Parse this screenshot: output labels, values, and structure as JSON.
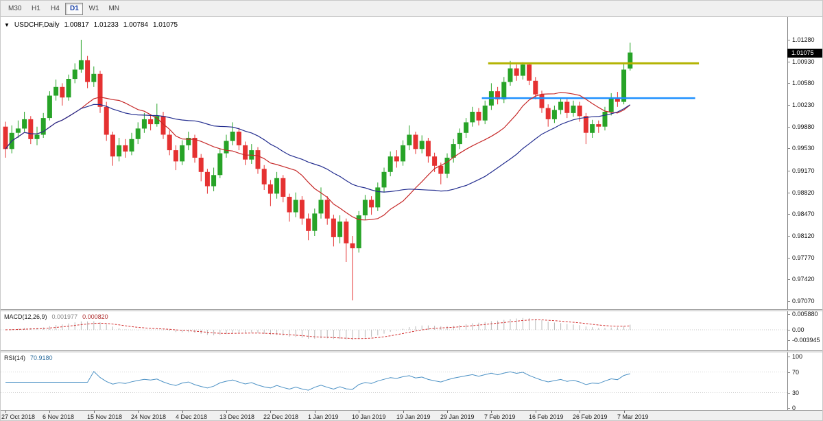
{
  "toolbar": {
    "timeframes": [
      {
        "label": "M30",
        "active": false
      },
      {
        "label": "H1",
        "active": false
      },
      {
        "label": "H4",
        "active": false
      },
      {
        "label": "D1",
        "active": true
      },
      {
        "label": "W1",
        "active": false
      },
      {
        "label": "MN",
        "active": false
      }
    ]
  },
  "chart": {
    "dropdown_icon": "▼",
    "symbol": "USDCHF,Daily",
    "ohlc": {
      "open": "1.00817",
      "high": "1.01233",
      "low": "1.00784",
      "close": "1.01075"
    },
    "price_axis": {
      "ticks": [
        "1.01280",
        "1.00930",
        "1.00580",
        "1.00230",
        "0.99880",
        "0.99530",
        "0.99170",
        "0.98820",
        "0.98470",
        "0.98120",
        "0.97770",
        "0.97420",
        "0.97070"
      ],
      "current_price": "1.01075"
    },
    "time_axis": [
      {
        "label": "27 Oct 2018",
        "index": 0
      },
      {
        "label": "6 Nov 2018",
        "index": 7
      },
      {
        "label": "15 Nov 2018",
        "index": 14
      },
      {
        "label": "24 Nov 2018",
        "index": 21
      },
      {
        "label": "4 Dec 2018",
        "index": 28
      },
      {
        "label": "13 Dec 2018",
        "index": 35
      },
      {
        "label": "22 Dec 2018",
        "index": 42
      },
      {
        "label": "1 Jan 2019",
        "index": 49
      },
      {
        "label": "10 Jan 2019",
        "index": 56
      },
      {
        "label": "19 Jan 2019",
        "index": 63
      },
      {
        "label": "29 Jan 2019",
        "index": 70
      },
      {
        "label": "7 Feb 2019",
        "index": 77
      },
      {
        "label": "16 Feb 2019",
        "index": 84
      },
      {
        "label": "26 Feb 2019",
        "index": 91
      },
      {
        "label": "7 Mar 2019",
        "index": 98
      }
    ]
  },
  "overlays": [
    {
      "name": "resistance-trendline",
      "price": 1.009,
      "start_index": 76.5,
      "end_index": 109.9,
      "color": "#b3b300",
      "width": 3
    },
    {
      "name": "support-trendline",
      "price": 1.0034,
      "start_index": 75.5,
      "end_index": 109.3,
      "color": "#1e90ff",
      "width": 2.5
    }
  ],
  "macd": {
    "name": "MACD(12,26,9)",
    "value_main": "0.001977",
    "value_signal": "0.000820",
    "fast": 12,
    "slow": 26,
    "signal": 9,
    "axis": [
      {
        "label": "0.005880",
        "value": 0.00588
      },
      {
        "label": "0.00",
        "value": 0
      },
      {
        "label": "-0.003945",
        "value": -0.003945
      }
    ]
  },
  "rsi": {
    "name": "RSI(14)",
    "value": "70.9180",
    "period": 14,
    "levels": [
      70,
      30
    ],
    "axis": [
      {
        "label": "100",
        "value": 100
      },
      {
        "label": "70",
        "value": 70
      },
      {
        "label": "30",
        "value": 30
      },
      {
        "label": "0",
        "value": 0
      }
    ]
  },
  "colors": {
    "candle_up": "#27a327",
    "candle_down": "#e53131",
    "ma_fast": "#c62828",
    "ma_slow": "#232d8f",
    "macd_hist": "#b8b8b8",
    "macd_signal": "#d32f2f",
    "rsi_line": "#4a90c4",
    "price_tag_bg": "#000000",
    "price_tag_text": "#ffffff"
  },
  "chart_data": {
    "type": "candlestick",
    "symbol": "USDCHF",
    "timeframe": "Daily",
    "title": "USDCHF,Daily",
    "current_ohlc": {
      "open": 1.00817,
      "high": 1.01233,
      "low": 1.00784,
      "close": 1.01075
    },
    "price_range": [
      0.9707,
      1.0128
    ],
    "x_axis_dates": [
      "27 Oct 2018",
      "6 Nov 2018",
      "15 Nov 2018",
      "24 Nov 2018",
      "4 Dec 2018",
      "13 Dec 2018",
      "22 Dec 2018",
      "1 Jan 2019",
      "10 Jan 2019",
      "19 Jan 2019",
      "29 Jan 2019",
      "7 Feb 2019",
      "16 Feb 2019",
      "26 Feb 2019",
      "7 Mar 2019"
    ],
    "moving_averages": [
      {
        "name": "ma-fast",
        "period": 13,
        "color": "#c62828"
      },
      {
        "name": "ma-slow",
        "period": 30,
        "color": "#232d8f"
      }
    ],
    "candles_ohlc": [
      [
        0.9988,
        0.9996,
        0.9938,
        0.9952
      ],
      [
        0.9952,
        0.999,
        0.9945,
        0.9978
      ],
      [
        0.9978,
        0.9998,
        0.997,
        0.9985
      ],
      [
        0.9985,
        1.0012,
        0.998,
        1.0
      ],
      [
        1.0,
        1.0005,
        0.996,
        0.9968
      ],
      [
        0.9968,
        0.9988,
        0.9958,
        0.9975
      ],
      [
        0.9975,
        1.001,
        0.997,
        1.0002
      ],
      [
        1.0002,
        1.0045,
        0.9998,
        1.0038
      ],
      [
        1.0038,
        1.0064,
        1.003,
        1.0052
      ],
      [
        1.0052,
        1.0058,
        1.0022,
        1.0035
      ],
      [
        1.0035,
        1.0072,
        1.003,
        1.0065
      ],
      [
        1.0065,
        1.009,
        1.0058,
        1.008
      ],
      [
        1.008,
        1.0128,
        1.0075,
        1.0095
      ],
      [
        1.0095,
        1.0102,
        1.005,
        1.006
      ],
      [
        1.006,
        1.0085,
        1.0052,
        1.0073
      ],
      [
        1.0073,
        1.0078,
        1.001,
        1.002
      ],
      [
        1.002,
        1.0028,
        0.9965,
        0.9975
      ],
      [
        0.9975,
        0.998,
        0.9925,
        0.994
      ],
      [
        0.994,
        0.997,
        0.9932,
        0.9958
      ],
      [
        0.9958,
        0.9968,
        0.9938,
        0.9948
      ],
      [
        0.9948,
        0.9978,
        0.9942,
        0.9968
      ],
      [
        0.9968,
        0.9995,
        0.996,
        0.9985
      ],
      [
        0.9985,
        1.001,
        0.9978,
        1.0
      ],
      [
        1.0,
        1.0008,
        0.9982,
        0.9992
      ],
      [
        0.9992,
        1.0025,
        0.9988,
        1.0005
      ],
      [
        1.0005,
        1.0012,
        0.9968,
        0.9975
      ],
      [
        0.9975,
        0.9982,
        0.9942,
        0.995
      ],
      [
        0.995,
        0.9958,
        0.9918,
        0.9932
      ],
      [
        0.9932,
        0.9966,
        0.9926,
        0.9958
      ],
      [
        0.9958,
        0.998,
        0.995,
        0.997
      ],
      [
        0.997,
        0.9975,
        0.993,
        0.9938
      ],
      [
        0.9938,
        0.9944,
        0.99,
        0.9915
      ],
      [
        0.9915,
        0.992,
        0.988,
        0.9892
      ],
      [
        0.9892,
        0.9922,
        0.9884,
        0.991
      ],
      [
        0.991,
        0.9952,
        0.9905,
        0.9945
      ],
      [
        0.9945,
        0.9975,
        0.9938,
        0.9965
      ],
      [
        0.9965,
        0.9995,
        0.9958,
        0.998
      ],
      [
        0.998,
        0.9986,
        0.995,
        0.9958
      ],
      [
        0.9958,
        0.9964,
        0.9926,
        0.9935
      ],
      [
        0.9935,
        0.996,
        0.9928,
        0.995
      ],
      [
        0.995,
        0.9955,
        0.9912,
        0.992
      ],
      [
        0.992,
        0.9926,
        0.9886,
        0.9895
      ],
      [
        0.9895,
        0.9902,
        0.986,
        0.988
      ],
      [
        0.988,
        0.9915,
        0.9872,
        0.9905
      ],
      [
        0.9905,
        0.991,
        0.9866,
        0.9875
      ],
      [
        0.9875,
        0.988,
        0.9835,
        0.985
      ],
      [
        0.985,
        0.9882,
        0.9842,
        0.987
      ],
      [
        0.987,
        0.9876,
        0.983,
        0.984
      ],
      [
        0.984,
        0.9848,
        0.9805,
        0.982
      ],
      [
        0.982,
        0.9856,
        0.9812,
        0.9848
      ],
      [
        0.9848,
        0.989,
        0.984,
        0.987
      ],
      [
        0.987,
        0.9876,
        0.983,
        0.984
      ],
      [
        0.984,
        0.9846,
        0.9795,
        0.981
      ],
      [
        0.981,
        0.9845,
        0.98,
        0.9835
      ],
      [
        0.9835,
        0.984,
        0.977,
        0.98
      ],
      [
        0.98,
        0.9812,
        0.9708,
        0.9792
      ],
      [
        0.9792,
        0.9852,
        0.9785,
        0.9845
      ],
      [
        0.9845,
        0.9878,
        0.9838,
        0.987
      ],
      [
        0.987,
        0.9876,
        0.9846,
        0.9858
      ],
      [
        0.9858,
        0.9898,
        0.9852,
        0.989
      ],
      [
        0.989,
        0.9922,
        0.9882,
        0.9915
      ],
      [
        0.9915,
        0.9948,
        0.9908,
        0.994
      ],
      [
        0.994,
        0.995,
        0.9922,
        0.9932
      ],
      [
        0.9932,
        0.9966,
        0.9925,
        0.9958
      ],
      [
        0.9958,
        0.999,
        0.995,
        0.9975
      ],
      [
        0.9975,
        0.998,
        0.9944,
        0.9952
      ],
      [
        0.9952,
        0.9974,
        0.9945,
        0.9965
      ],
      [
        0.9965,
        0.997,
        0.993,
        0.994
      ],
      [
        0.994,
        0.9946,
        0.9915,
        0.9925
      ],
      [
        0.9925,
        0.993,
        0.9895,
        0.9912
      ],
      [
        0.9912,
        0.9945,
        0.9905,
        0.9938
      ],
      [
        0.9938,
        0.9968,
        0.993,
        0.996
      ],
      [
        0.996,
        0.9985,
        0.9952,
        0.9978
      ],
      [
        0.9978,
        1.0002,
        0.997,
        0.9995
      ],
      [
        0.9995,
        1.002,
        0.9988,
        1.0012
      ],
      [
        1.0012,
        1.0018,
        0.999,
        0.9998
      ],
      [
        0.9998,
        1.003,
        0.9992,
        1.0022
      ],
      [
        1.0022,
        1.0058,
        1.0015,
        1.0045
      ],
      [
        1.0045,
        1.0052,
        1.0024,
        1.0032
      ],
      [
        1.0032,
        1.0068,
        1.0026,
        1.006
      ],
      [
        1.006,
        1.0094,
        1.0054,
        1.0082
      ],
      [
        1.0082,
        1.0088,
        1.0062,
        1.007
      ],
      [
        1.007,
        1.0092,
        1.0064,
        1.0088
      ],
      [
        1.0088,
        1.009,
        1.0055,
        1.0062
      ],
      [
        1.0062,
        1.0068,
        1.0032,
        1.004
      ],
      [
        1.004,
        1.0046,
        1.001,
        1.0018
      ],
      [
        1.0018,
        1.0024,
        0.9988,
        1.0
      ],
      [
        1.0,
        1.0022,
        0.9994,
        1.0015
      ],
      [
        1.0015,
        1.0035,
        1.0008,
        1.0028
      ],
      [
        1.0028,
        1.0034,
        1.0002,
        1.001
      ],
      [
        1.001,
        1.003,
        1.0004,
        1.0022
      ],
      [
        1.0022,
        1.0028,
        0.9996,
        1.0005
      ],
      [
        1.0005,
        1.001,
        0.996,
        0.9978
      ],
      [
        0.9978,
        0.9999,
        0.997,
        0.9992
      ],
      [
        0.9992,
        0.9998,
        0.9978,
        0.9988
      ],
      [
        0.9988,
        1.002,
        0.9982,
        1.0012
      ],
      [
        1.0012,
        1.0042,
        1.0006,
        1.0035
      ],
      [
        1.0035,
        1.0044,
        1.002,
        1.0028
      ],
      [
        1.0028,
        1.009,
        1.0024,
        1.008
      ],
      [
        1.00817,
        1.01233,
        1.00784,
        1.01075
      ]
    ]
  }
}
